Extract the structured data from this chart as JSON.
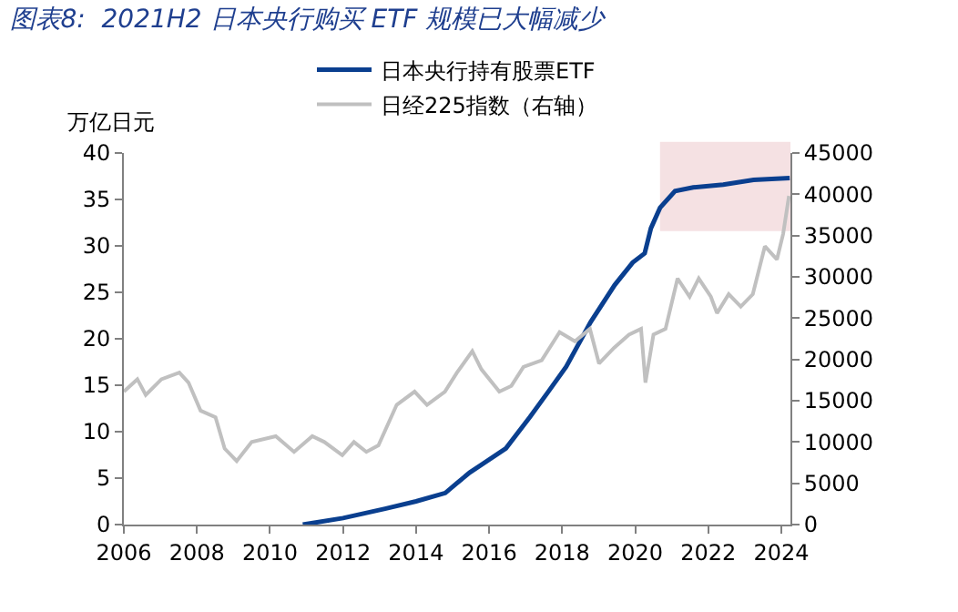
{
  "chart_data": {
    "type": "line",
    "title": "图表8:  2021H2 日本央行购买 ETF 规模已大幅减少",
    "ylabel": "万亿日元",
    "xlim": [
      2006,
      2024.25
    ],
    "xticks": [
      2006,
      2008,
      2010,
      2012,
      2014,
      2016,
      2018,
      2020,
      2022,
      2024
    ],
    "ylim": [
      0,
      40
    ],
    "yticks": [
      0,
      5,
      10,
      15,
      20,
      25,
      30,
      35,
      40
    ],
    "y2lim": [
      0,
      45000
    ],
    "y2ticks": [
      0,
      5000,
      10000,
      15000,
      20000,
      25000,
      30000,
      35000,
      40000,
      45000
    ],
    "legend": "top",
    "grid": false,
    "bands": [
      {
        "axis": "x",
        "from": 2020.68,
        "to": 2024.25,
        "color": "#f5e1e3"
      }
    ],
    "series": [
      {
        "name": "日本央行持有股票ETF",
        "color": "#0a3f8f",
        "x": [
          2010.9,
          2012.0,
          2013.15,
          2014.0,
          2014.8,
          2015.1,
          2015.47,
          2016.46,
          2017.12,
          2017.62,
          2018.11,
          2018.78,
          2019.44,
          2019.93,
          2020.26,
          2020.43,
          2020.68,
          2021.09,
          2021.59,
          2022.41,
          2023.24,
          2024.23
        ],
        "values": [
          0,
          0.7,
          1.7,
          2.5,
          3.4,
          4.4,
          5.6,
          8.2,
          11.6,
          14.3,
          17.0,
          21.8,
          25.8,
          28.2,
          29.2,
          31.9,
          34.1,
          35.9,
          36.3,
          36.6,
          37.1,
          37.3
        ]
      },
      {
        "name": "日经225指数（右轴）",
        "color": "#c0c0c0",
        "axis": "y2",
        "x": [
          2006.0,
          2006.37,
          2006.6,
          2007.03,
          2007.52,
          2007.77,
          2008.1,
          2008.51,
          2008.76,
          2009.09,
          2009.5,
          2010.16,
          2010.66,
          2011.16,
          2011.49,
          2011.98,
          2012.3,
          2012.64,
          2012.97,
          2013.47,
          2013.96,
          2014.3,
          2014.79,
          2015.12,
          2015.54,
          2015.79,
          2016.28,
          2016.61,
          2016.94,
          2017.44,
          2017.93,
          2018.35,
          2018.76,
          2019.01,
          2019.42,
          2019.83,
          2020.16,
          2020.28,
          2020.5,
          2020.83,
          2021.16,
          2021.49,
          2021.74,
          2022.07,
          2022.24,
          2022.56,
          2022.89,
          2023.22,
          2023.55,
          2023.88,
          2024.05,
          2024.21
        ],
        "values": [
          16100,
          17600,
          15700,
          17600,
          18400,
          17200,
          13800,
          13000,
          9200,
          7700,
          10000,
          10700,
          8800,
          10700,
          10000,
          8400,
          10000,
          8800,
          9600,
          14500,
          16100,
          14500,
          16100,
          18400,
          21000,
          18800,
          16100,
          16800,
          19100,
          19900,
          23300,
          22200,
          23700,
          19500,
          21400,
          23000,
          23700,
          17200,
          23000,
          23700,
          29800,
          27600,
          29800,
          27600,
          25600,
          27900,
          26400,
          27900,
          33700,
          32100,
          35200,
          39800
        ]
      }
    ]
  }
}
